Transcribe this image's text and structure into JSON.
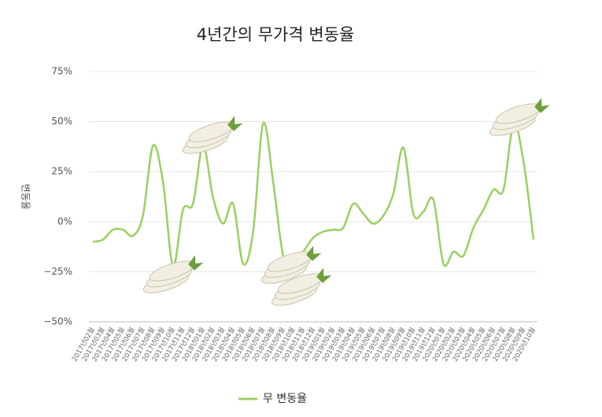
{
  "chart_data": {
    "type": "line",
    "title": "4년간의 무가격 변동율",
    "y_label": "변동율",
    "categories": [
      "2017년02월",
      "2017년03월",
      "2017년04월",
      "2017년05월",
      "2017년06월",
      "2017년07월",
      "2017년08월",
      "2017년09월",
      "2017년10월",
      "2017년11월",
      "2017년12월",
      "2018년01월",
      "2018년02월",
      "2018년03월",
      "2018년04월",
      "2018년05월",
      "2018년06월",
      "2018년07월",
      "2018년08월",
      "2018년09월",
      "2018년10월",
      "2018년11월",
      "2018년12월",
      "2019년01월",
      "2019년02월",
      "2019년03월",
      "2019년04월",
      "2019년05월",
      "2019년06월",
      "2019년07월",
      "2019년08월",
      "2019년09월",
      "2019년10월",
      "2019년11월",
      "2019년12월",
      "2020년01월",
      "2020년02월",
      "2020년03월",
      "2020년04월",
      "2020년05월",
      "2020년06월",
      "2020년07월",
      "2020년08월",
      "2020년09월",
      "2020년10월"
    ],
    "series": [
      {
        "name": "무 변동율",
        "color": "#99d063",
        "values": [
          -10,
          -9,
          -4,
          -4,
          -7,
          3,
          38,
          20,
          -22,
          6,
          9,
          38,
          12,
          -1,
          9,
          -21,
          -5,
          49,
          20,
          -17,
          -22,
          -15,
          -8,
          -5,
          -4,
          -3,
          9,
          4,
          -1,
          3,
          14,
          37,
          4,
          5,
          11,
          -21,
          -15,
          -17,
          -3,
          6,
          16,
          16,
          49,
          30,
          -9
        ]
      }
    ],
    "ylim": [
      -50,
      75
    ],
    "yticks": [
      {
        "value": -50,
        "label": "−50%"
      },
      {
        "value": -25,
        "label": "−25%"
      },
      {
        "value": 0,
        "label": "0%"
      },
      {
        "value": 25,
        "label": "25%"
      },
      {
        "value": 50,
        "label": "50%"
      },
      {
        "value": 75,
        "label": "75%"
      }
    ],
    "grid": true
  }
}
